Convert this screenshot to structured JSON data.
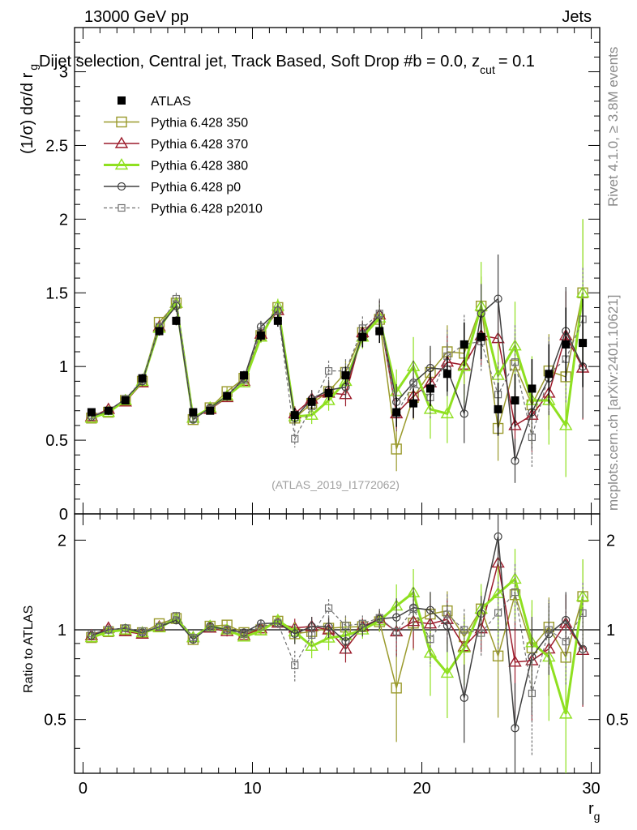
{
  "header": {
    "energy": "13000 GeV pp",
    "category": "Jets",
    "selection": "Dijet selection, Central jet, Track Based, Soft Drop #b = 0.0, z",
    "zcut_sub": "cut",
    "zcut_val": "= 0.1"
  },
  "side_text": {
    "rivet": "Rivet 4.1.0, ≥ 3.8M events",
    "mcplots": "mcplots.cern.ch [arXiv:2401.10621]"
  },
  "watermark": "(ATLAS_2019_I1772062)",
  "axes": {
    "ylabel_main": "(1/σ) dσ/d r",
    "ylabel_main_sub": "g",
    "ylabel_ratio": "Ratio to ATLAS",
    "xlabel": "r",
    "xlabel_sub": "g",
    "main_ticks": [
      "0",
      "0.5",
      "1",
      "1.5",
      "2",
      "2.5",
      "3"
    ],
    "ratio_ticks_left": [
      "0.5",
      "1",
      "2"
    ],
    "ratio_ticks_right": [
      "0.5",
      "1",
      "2"
    ],
    "x_ticks": [
      "0",
      "10",
      "20",
      "30"
    ]
  },
  "legend": [
    {
      "label": "ATLAS",
      "color": "#000000",
      "marker": "filled-square",
      "dash": false
    },
    {
      "label": "Pythia 6.428 350",
      "color": "#9a9a2c",
      "marker": "open-square",
      "dash": false
    },
    {
      "label": "Pythia 6.428 370",
      "color": "#9c1c2c",
      "marker": "open-triangle",
      "dash": false
    },
    {
      "label": "Pythia 6.428 380",
      "color": "#8fe020",
      "marker": "open-triangle",
      "dash": false
    },
    {
      "label": "Pythia 6.428 p0",
      "color": "#404040",
      "marker": "open-circle",
      "dash": false
    },
    {
      "label": "Pythia 6.428 p2010",
      "color": "#707070",
      "marker": "open-small-square",
      "dash": true
    }
  ],
  "chart_data": {
    "type": "line",
    "title": "Dijet selection, Central jet, Track Based, Soft Drop #b = 0.0, z_cut = 0.1",
    "xlabel": "r_g",
    "ylabel": "(1/σ) dσ/d r_g",
    "xlim": [
      -0.5,
      30.5
    ],
    "ylim": [
      0,
      3.3
    ],
    "ratio_ylim": [
      0.33,
      2.45
    ],
    "ratio_scale": "log",
    "x": [
      0.5,
      1.5,
      2.5,
      3.5,
      4.5,
      5.5,
      6.5,
      7.5,
      8.5,
      9.5,
      10.5,
      11.5,
      12.5,
      13.5,
      14.5,
      15.5,
      16.5,
      17.5,
      18.5,
      19.5,
      20.5,
      21.5,
      22.5,
      23.5,
      24.5,
      25.5,
      26.5,
      27.5,
      28.5,
      29.5
    ],
    "series": [
      {
        "name": "ATLAS",
        "values": [
          0.69,
          0.7,
          0.77,
          0.92,
          1.24,
          1.31,
          0.69,
          0.7,
          0.8,
          0.94,
          1.21,
          1.31,
          0.67,
          0.76,
          0.82,
          0.94,
          1.2,
          1.24,
          0.69,
          0.75,
          0.85,
          0.95,
          1.15,
          1.2,
          0.71,
          0.77,
          0.85,
          0.95,
          1.15,
          1.16
        ],
        "errors": [
          0.02,
          0.02,
          0.02,
          0.03,
          0.03,
          0.03,
          0.02,
          0.02,
          0.02,
          0.03,
          0.04,
          0.04,
          0.05,
          0.05,
          0.05,
          0.06,
          0.07,
          0.08,
          0.1,
          0.1,
          0.12,
          0.12,
          0.15,
          0.15,
          0.18,
          0.18,
          0.2,
          0.2,
          0.25,
          0.3
        ]
      },
      {
        "name": "Pythia 6.428 350",
        "values": [
          0.65,
          0.69,
          0.77,
          0.9,
          1.3,
          1.43,
          0.64,
          0.72,
          0.83,
          0.92,
          1.21,
          1.4,
          0.65,
          0.75,
          0.83,
          0.96,
          1.23,
          1.32,
          0.44,
          0.79,
          0.96,
          1.1,
          1.09,
          1.41,
          0.58,
          1.01,
          0.74,
          0.97,
          0.93,
          1.5
        ],
        "errors": [
          0.02,
          0.02,
          0.02,
          0.03,
          0.03,
          0.04,
          0.02,
          0.02,
          0.03,
          0.03,
          0.04,
          0.05,
          0.05,
          0.06,
          0.07,
          0.08,
          0.08,
          0.1,
          0.15,
          0.15,
          0.17,
          0.18,
          0.2,
          0.2,
          0.22,
          0.22,
          0.25,
          0.25,
          0.3,
          0.5
        ]
      },
      {
        "name": "Pythia 6.428 370",
        "values": [
          0.66,
          0.71,
          0.76,
          0.89,
          1.27,
          1.43,
          0.65,
          0.71,
          0.79,
          0.9,
          1.22,
          1.38,
          0.68,
          0.78,
          0.82,
          0.81,
          1.23,
          1.35,
          0.68,
          0.8,
          0.89,
          1.03,
          1.01,
          1.21,
          1.19,
          0.6,
          0.67,
          0.82,
          1.21,
          0.99
        ],
        "errors": [
          0.02,
          0.02,
          0.02,
          0.03,
          0.03,
          0.04,
          0.02,
          0.02,
          0.03,
          0.03,
          0.04,
          0.05,
          0.05,
          0.06,
          0.07,
          0.08,
          0.08,
          0.1,
          0.12,
          0.15,
          0.15,
          0.18,
          0.2,
          0.2,
          0.22,
          0.22,
          0.25,
          0.25,
          0.3,
          0.35
        ]
      },
      {
        "name": "Pythia 6.428 380",
        "values": [
          0.65,
          0.69,
          0.77,
          0.9,
          1.26,
          1.43,
          0.65,
          0.72,
          0.8,
          0.89,
          1.2,
          1.41,
          0.66,
          0.67,
          0.77,
          0.9,
          1.2,
          1.33,
          0.83,
          1.0,
          0.71,
          0.68,
          1.0,
          1.41,
          0.94,
          1.14,
          0.77,
          0.77,
          0.6,
          1.5
        ],
        "errors": [
          0.02,
          0.02,
          0.02,
          0.03,
          0.03,
          0.04,
          0.02,
          0.02,
          0.03,
          0.03,
          0.04,
          0.05,
          0.05,
          0.06,
          0.07,
          0.08,
          0.08,
          0.1,
          0.15,
          0.2,
          0.2,
          0.2,
          0.25,
          0.3,
          0.3,
          0.3,
          0.3,
          0.3,
          0.35,
          0.5
        ]
      },
      {
        "name": "Pythia 6.428 p0",
        "values": [
          0.66,
          0.7,
          0.78,
          0.9,
          1.27,
          1.41,
          0.64,
          0.72,
          0.8,
          0.92,
          1.27,
          1.38,
          0.65,
          0.78,
          0.84,
          0.86,
          1.22,
          1.35,
          0.76,
          0.89,
          0.99,
          0.98,
          0.68,
          1.36,
          1.46,
          0.36,
          0.69,
          0.92,
          1.24,
          1.0
        ],
        "errors": [
          0.02,
          0.02,
          0.02,
          0.03,
          0.03,
          0.04,
          0.02,
          0.02,
          0.03,
          0.03,
          0.04,
          0.05,
          0.05,
          0.06,
          0.07,
          0.08,
          0.08,
          0.1,
          0.12,
          0.15,
          0.15,
          0.18,
          0.2,
          0.2,
          0.3,
          0.15,
          0.25,
          0.25,
          0.3,
          0.35
        ]
      },
      {
        "name": "Pythia 6.428 p2010",
        "values": [
          0.67,
          0.7,
          0.78,
          0.91,
          1.27,
          1.46,
          0.65,
          0.71,
          0.8,
          0.91,
          1.24,
          1.38,
          0.51,
          0.73,
          0.97,
          0.97,
          1.26,
          1.36,
          0.68,
          0.88,
          0.79,
          1.07,
          1.15,
          1.17,
          0.81,
          1.03,
          0.52,
          0.95,
          1.05,
          1.32
        ],
        "errors": [
          0.02,
          0.02,
          0.02,
          0.03,
          0.03,
          0.04,
          0.02,
          0.02,
          0.03,
          0.03,
          0.04,
          0.05,
          0.06,
          0.06,
          0.07,
          0.08,
          0.08,
          0.1,
          0.12,
          0.15,
          0.15,
          0.18,
          0.2,
          0.2,
          0.22,
          0.25,
          0.2,
          0.25,
          0.3,
          0.35
        ]
      }
    ]
  }
}
